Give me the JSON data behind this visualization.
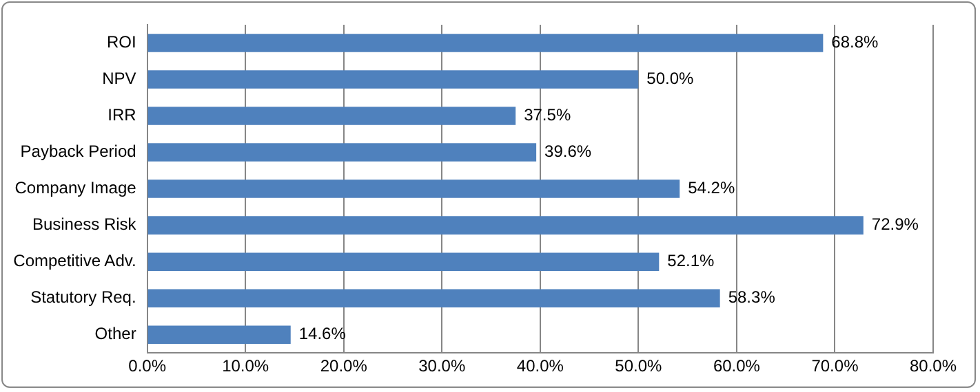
{
  "chart_data": {
    "type": "bar",
    "orientation": "horizontal",
    "categories": [
      "ROI",
      "NPV",
      "IRR",
      "Payback Period",
      "Company Image",
      "Business Risk",
      "Competitive Adv.",
      "Statutory Req.",
      "Other"
    ],
    "values": [
      68.8,
      50.0,
      37.5,
      39.6,
      54.2,
      72.9,
      52.1,
      58.3,
      14.6
    ],
    "value_labels": [
      "68.8%",
      "50.0%",
      "37.5%",
      "39.6%",
      "54.2%",
      "72.9%",
      "52.1%",
      "58.3%",
      "14.6%"
    ],
    "color": "#4f81bd",
    "xlim": [
      0,
      80
    ],
    "xticks": [
      {
        "value": 0,
        "label": "0.0%"
      },
      {
        "value": 10,
        "label": "10.0%"
      },
      {
        "value": 20,
        "label": "20.0%"
      },
      {
        "value": 30,
        "label": "30.0%"
      },
      {
        "value": 40,
        "label": "40.0%"
      },
      {
        "value": 50,
        "label": "50.0%"
      },
      {
        "value": 60,
        "label": "60.0%"
      },
      {
        "value": 70,
        "label": "70.0%"
      },
      {
        "value": 80,
        "label": "80.0%"
      }
    ],
    "grid": "x"
  }
}
